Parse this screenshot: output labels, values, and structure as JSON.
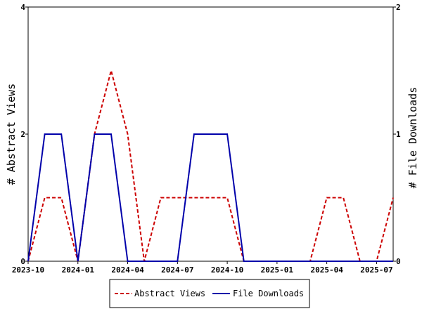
{
  "chart_data": {
    "type": "line",
    "x": [
      "2023-10",
      "2023-11",
      "2023-12",
      "2024-01",
      "2024-02",
      "2024-03",
      "2024-04",
      "2024-05",
      "2024-06",
      "2024-07",
      "2024-08",
      "2024-09",
      "2024-10",
      "2024-11",
      "2024-12",
      "2025-01",
      "2025-02",
      "2025-03",
      "2025-04",
      "2025-05",
      "2025-06",
      "2025-07",
      "2025-08"
    ],
    "x_ticks": [
      "2023-10",
      "2024-01",
      "2024-04",
      "2024-07",
      "2024-10",
      "2025-01",
      "2025-04",
      "2025-07"
    ],
    "series": [
      {
        "name": "Abstract Views",
        "axis": "left",
        "color": "#cc0000",
        "dash": "dashed",
        "values": [
          0,
          1,
          1,
          0,
          2,
          3,
          2,
          0,
          1,
          1,
          1,
          1,
          1,
          0,
          0,
          0,
          0,
          0,
          1,
          1,
          0,
          0,
          1
        ]
      },
      {
        "name": "File Downloads",
        "axis": "right",
        "color": "#0000aa",
        "dash": "solid",
        "values": [
          0,
          1,
          1,
          0,
          1,
          1,
          0,
          0,
          0,
          0,
          1,
          1,
          1,
          0,
          0,
          0,
          0,
          0,
          0,
          0,
          0,
          0,
          0
        ]
      }
    ],
    "ylabel_left": "# Abstract Views",
    "ylabel_right": "# File Downloads",
    "ylim_left": [
      0,
      4
    ],
    "ylim_right": [
      0,
      2
    ],
    "yticks_left": [
      "0",
      "2",
      "4"
    ],
    "yticks_right": [
      "0",
      "1",
      "2"
    ],
    "legend_placement": "bottom-center",
    "grid": false
  }
}
